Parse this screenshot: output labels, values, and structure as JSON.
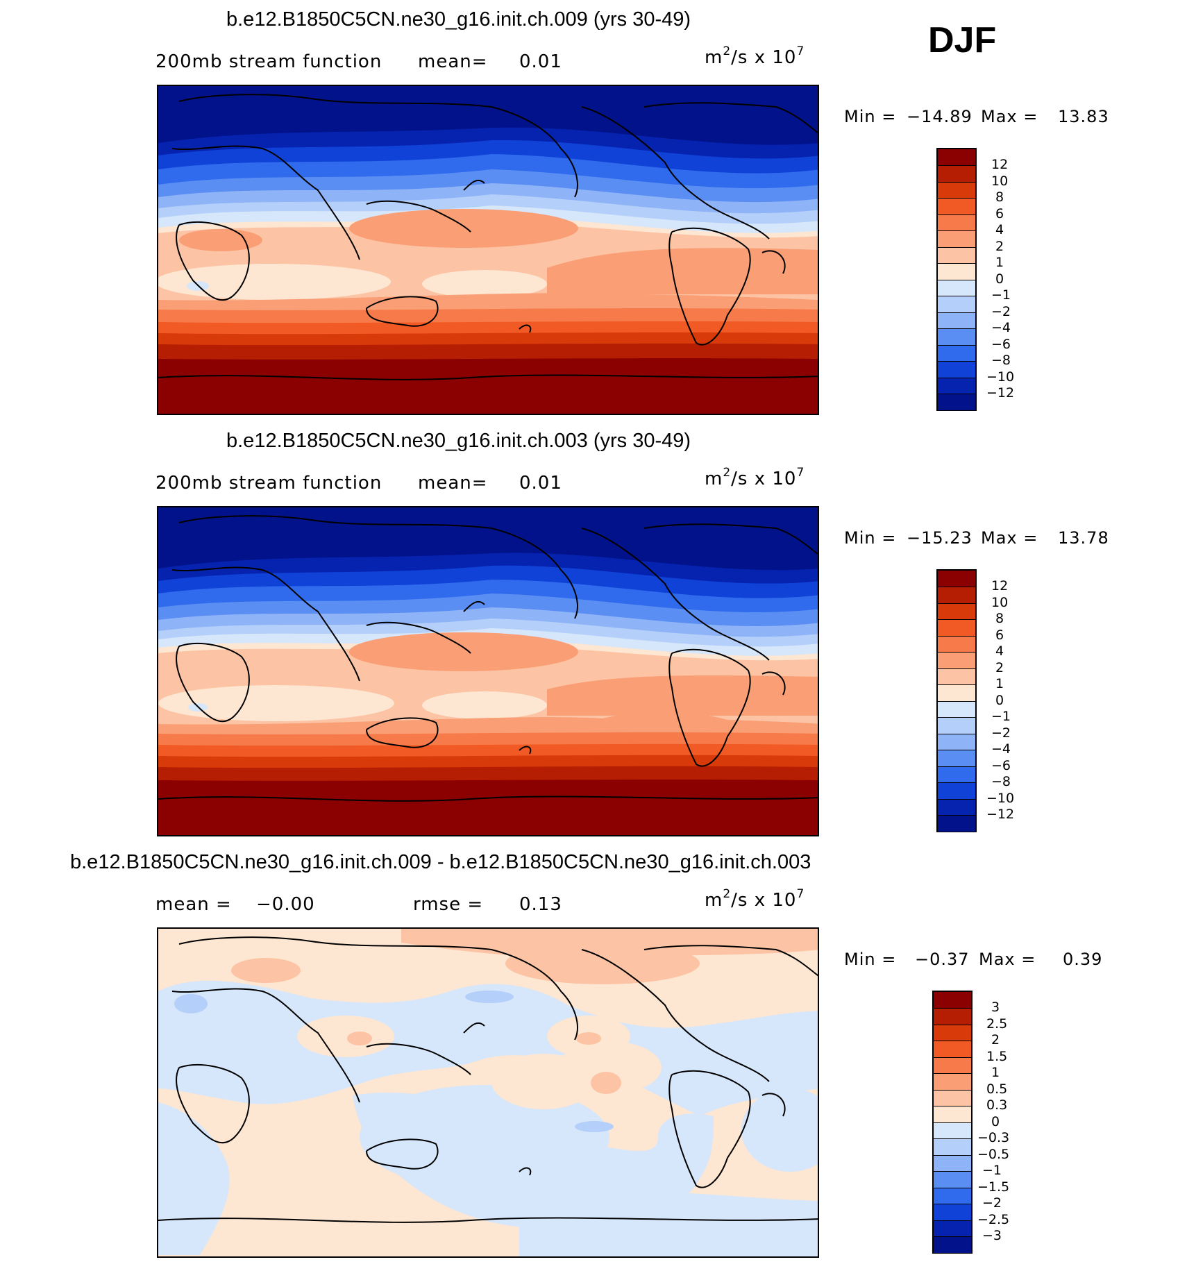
{
  "season": "DJF",
  "panels": [
    {
      "title": "b.e12.B1850C5CN.ne30_g16.init.ch.009 (yrs 30-49)",
      "left_label": "200mb stream function",
      "mean_label": "mean=",
      "mean_value": "0.01",
      "units_base": "m",
      "units_exp": "2",
      "units_mid": "/s x 10",
      "units_exp2": "7",
      "min_label": "Min =",
      "min_value": "−14.89",
      "max_label": "Max =",
      "max_value": "13.83",
      "colorbar_labels": [
        "12",
        "10",
        "8",
        "6",
        "4",
        "2",
        "1",
        "0",
        "−1",
        "−2",
        "−4",
        "−6",
        "−8",
        "−10",
        "−12"
      ]
    },
    {
      "title": "b.e12.B1850C5CN.ne30_g16.init.ch.003 (yrs 30-49)",
      "left_label": "200mb stream function",
      "mean_label": "mean=",
      "mean_value": "0.01",
      "units_base": "m",
      "units_exp": "2",
      "units_mid": "/s x 10",
      "units_exp2": "7",
      "min_label": "Min =",
      "min_value": "−15.23",
      "max_label": "Max =",
      "max_value": "13.78",
      "colorbar_labels": [
        "12",
        "10",
        "8",
        "6",
        "4",
        "2",
        "1",
        "0",
        "−1",
        "−2",
        "−4",
        "−6",
        "−8",
        "−10",
        "−12"
      ]
    },
    {
      "title": "b.e12.B1850C5CN.ne30_g16.init.ch.009 - b.e12.B1850C5CN.ne30_g16.init.ch.003",
      "left_label": "mean =",
      "mean_label": "",
      "mean_value": "−0.00",
      "rmse_label": "rmse =",
      "rmse_value": "0.13",
      "units_base": "m",
      "units_exp": "2",
      "units_mid": "/s x 10",
      "units_exp2": "7",
      "min_label": "Min =",
      "min_value": "−0.37",
      "max_label": "Max =",
      "max_value": "0.39",
      "colorbar_labels": [
        "3",
        "2.5",
        "2",
        "1.5",
        "1",
        "0.5",
        "0.3",
        "0",
        "−0.3",
        "−0.5",
        "−1",
        "−1.5",
        "−2",
        "−2.5",
        "−3"
      ]
    }
  ],
  "colors": {
    "scale": [
      "#8b0000",
      "#b51e02",
      "#d93a0a",
      "#f15a24",
      "#f77b4a",
      "#fa9e75",
      "#fcc4a4",
      "#fde6d2",
      "#d6e7fb",
      "#b4cff9",
      "#8eb3f7",
      "#5b8ef3",
      "#2f6bec",
      "#1042d8",
      "#0623b0",
      "#02128a"
    ]
  }
}
